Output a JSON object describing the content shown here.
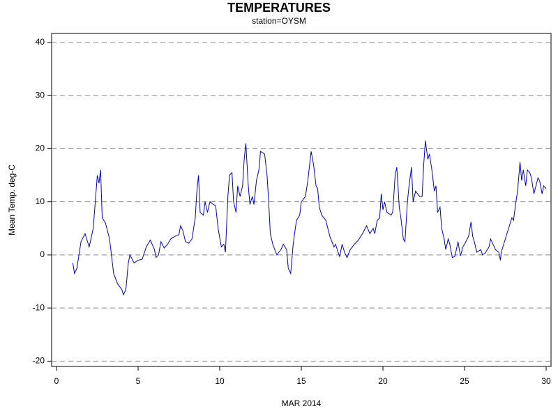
{
  "chart_data": {
    "type": "line",
    "title": "TEMPERATURES",
    "subtitle": "station=OYSM",
    "x_label": "MAR 2014",
    "y_label": "Mean Temp. deg-C",
    "xlim": [
      -0.3,
      30.3
    ],
    "ylim": [
      -21,
      41.7
    ],
    "xticks": [
      0,
      5,
      10,
      15,
      20,
      25,
      30
    ],
    "yticks": [
      -20,
      -10,
      0,
      10,
      20,
      30,
      40
    ],
    "grid": true,
    "x": [
      1.0,
      1.1,
      1.25,
      1.5,
      1.75,
      2.0,
      2.25,
      2.5,
      2.6,
      2.7,
      2.8,
      3.0,
      3.25,
      3.5,
      3.75,
      4.0,
      4.1,
      4.25,
      4.4,
      4.5,
      4.75,
      5.0,
      5.25,
      5.5,
      5.75,
      6.0,
      6.1,
      6.25,
      6.4,
      6.6,
      6.8,
      7.0,
      7.25,
      7.5,
      7.6,
      7.75,
      7.9,
      8.1,
      8.3,
      8.5,
      8.6,
      8.7,
      8.8,
      9.0,
      9.1,
      9.25,
      9.4,
      9.6,
      9.75,
      9.9,
      10.1,
      10.25,
      10.35,
      10.5,
      10.6,
      10.75,
      10.85,
      11.0,
      11.1,
      11.25,
      11.4,
      11.5,
      11.6,
      11.75,
      11.85,
      12.0,
      12.1,
      12.25,
      12.4,
      12.5,
      12.75,
      12.9,
      13.0,
      13.1,
      13.25,
      13.5,
      13.75,
      13.9,
      14.1,
      14.2,
      14.35,
      14.5,
      14.7,
      14.9,
      15.0,
      15.25,
      15.4,
      15.6,
      15.75,
      15.9,
      16.0,
      16.1,
      16.25,
      16.5,
      16.75,
      17.0,
      17.1,
      17.25,
      17.35,
      17.5,
      17.65,
      17.8,
      18.0,
      18.25,
      18.5,
      18.75,
      19.0,
      19.2,
      19.4,
      19.5,
      19.65,
      19.8,
      19.9,
      20.0,
      20.1,
      20.25,
      20.5,
      20.6,
      20.75,
      20.85,
      21.0,
      21.1,
      21.25,
      21.35,
      21.5,
      21.6,
      21.75,
      21.85,
      22.0,
      22.25,
      22.4,
      22.5,
      22.6,
      22.75,
      22.85,
      23.0,
      23.15,
      23.25,
      23.35,
      23.5,
      23.6,
      23.75,
      23.85,
      24.0,
      24.1,
      24.25,
      24.4,
      24.5,
      24.6,
      24.75,
      24.9,
      25.0,
      25.25,
      25.4,
      25.5,
      25.6,
      25.75,
      26.0,
      26.1,
      26.25,
      26.5,
      26.6,
      26.75,
      26.9,
      27.1,
      27.2,
      27.25,
      27.5,
      27.75,
      27.9,
      28.0,
      28.15,
      28.25,
      28.4,
      28.5,
      28.6,
      28.75,
      28.85,
      29.0,
      29.1,
      29.25,
      29.5,
      29.6,
      29.75,
      29.85,
      30.0
    ],
    "series": [
      {
        "name": "Mean Temp",
        "color": "#0000cc",
        "values": [
          -1.5,
          -3.5,
          -2.5,
          2.5,
          4,
          1.5,
          5,
          15,
          13.5,
          16,
          7,
          6,
          3,
          -3.5,
          -5.5,
          -6.5,
          -7.5,
          -6.5,
          -1.5,
          0,
          -1.5,
          -1,
          -0.8,
          1.5,
          2.8,
          1,
          -0.5,
          0,
          2.5,
          1.3,
          2,
          3,
          3.5,
          3.8,
          5.5,
          4.5,
          2.5,
          2.2,
          3,
          7,
          12,
          15,
          8,
          7.5,
          10,
          8,
          10,
          9.5,
          9.3,
          5,
          1.5,
          2,
          0.5,
          11,
          15,
          15.5,
          10,
          8,
          13,
          11,
          13,
          18,
          21,
          13,
          9.5,
          11,
          9.5,
          14,
          16,
          19.5,
          19,
          15,
          10,
          4,
          2,
          0,
          1,
          2,
          1,
          -2.5,
          -3.5,
          2,
          6.5,
          7.5,
          10,
          11,
          14,
          19.5,
          17,
          13,
          12.5,
          9,
          7.5,
          6.5,
          3.5,
          1.5,
          2,
          0.5,
          -0.3,
          2,
          0.5,
          -0.5,
          1,
          2,
          2.8,
          4,
          5.5,
          4,
          5,
          4,
          6.5,
          7,
          11.5,
          8.5,
          10,
          8,
          7.5,
          8,
          15,
          16.5,
          9,
          7,
          3,
          2.5,
          10,
          13,
          16.5,
          10,
          12,
          11,
          11,
          17,
          21.5,
          18,
          19,
          16,
          12,
          13,
          8,
          9,
          5,
          3,
          1,
          3,
          2,
          -0.5,
          -0.3,
          1,
          2.5,
          -0.2,
          1.5,
          2,
          3.5,
          6.2,
          3.5,
          2.5,
          0.5,
          1,
          0,
          0.3,
          1.5,
          3,
          2,
          1,
          0.5,
          -1,
          0.5,
          3,
          5.5,
          7,
          6.5,
          10,
          12,
          17.5,
          14,
          16,
          13,
          16,
          15.5,
          14.5,
          11.5,
          14.5,
          14,
          11.5,
          13,
          12.5
        ]
      }
    ]
  }
}
